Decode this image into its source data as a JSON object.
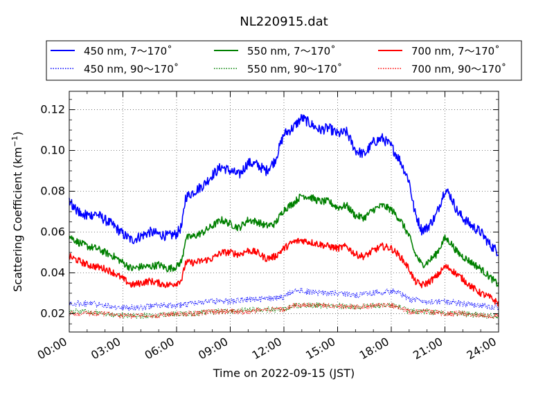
{
  "chart_data": {
    "type": "line",
    "title": "NL220915.dat",
    "xlabel": "Time on 2022-09-15 (JST)",
    "ylabel_main": "Scattering Coefficient (km",
    "ylabel_exp": "−1",
    "ylabel_close": ")",
    "x_ticks": [
      "00:00",
      "03:00",
      "06:00",
      "09:00",
      "12:00",
      "15:00",
      "18:00",
      "21:00",
      "24:00"
    ],
    "x_range_hours": [
      0,
      24
    ],
    "y_ticks": [
      "0.02",
      "0.04",
      "0.06",
      "0.08",
      "0.10",
      "0.12"
    ],
    "y_tick_values": [
      0.02,
      0.04,
      0.06,
      0.08,
      0.1,
      0.12
    ],
    "ylim": [
      0.011,
      0.129
    ],
    "grid": true,
    "legend_position": "top, above plot, 3 columns",
    "series": [
      {
        "name": "450 nm, 7～170˚",
        "color": "#0000ff",
        "style": "solid",
        "noise": 0.0025,
        "x": [
          0,
          0.5,
          1,
          1.5,
          2,
          2.5,
          3,
          3.5,
          4,
          4.5,
          5,
          5.5,
          6,
          6.3,
          6.5,
          7,
          7.5,
          8,
          8.5,
          9,
          9.5,
          10,
          10.5,
          11,
          11.5,
          12,
          12.5,
          13,
          13.5,
          14,
          14.5,
          15,
          15.5,
          16,
          16.5,
          17,
          17.5,
          18,
          18.5,
          19,
          19.3,
          19.7,
          20,
          20.5,
          21,
          21.3,
          21.7,
          22,
          22.5,
          23,
          23.5,
          24
        ],
        "y": [
          0.075,
          0.07,
          0.068,
          0.069,
          0.066,
          0.063,
          0.059,
          0.056,
          0.058,
          0.06,
          0.059,
          0.058,
          0.059,
          0.063,
          0.077,
          0.08,
          0.083,
          0.088,
          0.092,
          0.09,
          0.088,
          0.094,
          0.093,
          0.09,
          0.095,
          0.108,
          0.111,
          0.116,
          0.113,
          0.11,
          0.111,
          0.108,
          0.109,
          0.1,
          0.098,
          0.104,
          0.106,
          0.102,
          0.095,
          0.085,
          0.07,
          0.061,
          0.062,
          0.068,
          0.081,
          0.078,
          0.07,
          0.067,
          0.063,
          0.06,
          0.054,
          0.05
        ]
      },
      {
        "name": "550 nm, 7～170˚",
        "color": "#008000",
        "style": "solid",
        "noise": 0.0018,
        "x": [
          0,
          0.5,
          1,
          1.5,
          2,
          2.5,
          3,
          3.5,
          4,
          4.5,
          5,
          5.5,
          6,
          6.3,
          6.5,
          7,
          7.5,
          8,
          8.5,
          9,
          9.5,
          10,
          10.5,
          11,
          11.5,
          12,
          12.5,
          13,
          13.5,
          14,
          14.5,
          15,
          15.5,
          16,
          16.5,
          17,
          17.5,
          18,
          18.5,
          19,
          19.3,
          19.7,
          20,
          20.5,
          21,
          21.3,
          21.7,
          22,
          22.5,
          23,
          23.5,
          24
        ],
        "y": [
          0.058,
          0.055,
          0.053,
          0.052,
          0.05,
          0.048,
          0.045,
          0.042,
          0.043,
          0.043,
          0.044,
          0.042,
          0.043,
          0.046,
          0.057,
          0.058,
          0.06,
          0.063,
          0.066,
          0.064,
          0.062,
          0.066,
          0.065,
          0.063,
          0.064,
          0.071,
          0.074,
          0.078,
          0.077,
          0.075,
          0.075,
          0.072,
          0.073,
          0.068,
          0.067,
          0.071,
          0.073,
          0.071,
          0.066,
          0.058,
          0.05,
          0.044,
          0.045,
          0.049,
          0.057,
          0.055,
          0.05,
          0.048,
          0.045,
          0.042,
          0.038,
          0.034
        ]
      },
      {
        "name": "700 nm, 7～170˚",
        "color": "#ff0000",
        "style": "solid",
        "noise": 0.0017,
        "x": [
          0,
          0.5,
          1,
          1.5,
          2,
          2.5,
          3,
          3.5,
          4,
          4.5,
          5,
          5.5,
          6,
          6.3,
          6.5,
          7,
          7.5,
          8,
          8.5,
          9,
          9.5,
          10,
          10.5,
          11,
          11.5,
          12,
          12.5,
          13,
          13.5,
          14,
          14.5,
          15,
          15.5,
          16,
          16.5,
          17,
          17.5,
          18,
          18.5,
          19,
          19.3,
          19.7,
          20,
          20.5,
          21,
          21.3,
          21.7,
          22,
          22.5,
          23,
          23.5,
          24
        ],
        "y": [
          0.048,
          0.046,
          0.044,
          0.043,
          0.042,
          0.04,
          0.037,
          0.034,
          0.035,
          0.036,
          0.035,
          0.034,
          0.035,
          0.037,
          0.045,
          0.045,
          0.046,
          0.047,
          0.05,
          0.05,
          0.049,
          0.051,
          0.05,
          0.047,
          0.048,
          0.052,
          0.055,
          0.056,
          0.055,
          0.054,
          0.053,
          0.052,
          0.053,
          0.049,
          0.048,
          0.051,
          0.053,
          0.052,
          0.048,
          0.042,
          0.036,
          0.034,
          0.035,
          0.038,
          0.043,
          0.042,
          0.039,
          0.037,
          0.033,
          0.03,
          0.028,
          0.025
        ]
      },
      {
        "name": "450 nm, 90～170˚",
        "color": "#0000ff",
        "style": "dotted",
        "noise": 0.0015,
        "x": [
          0,
          1,
          2,
          3,
          4,
          5,
          6,
          7,
          8,
          9,
          10,
          11,
          12,
          12.5,
          13,
          14,
          15,
          16,
          17,
          18,
          18.5,
          19,
          20,
          21,
          22,
          23,
          24
        ],
        "y": [
          0.025,
          0.025,
          0.024,
          0.023,
          0.023,
          0.024,
          0.024,
          0.025,
          0.026,
          0.026,
          0.027,
          0.027,
          0.028,
          0.031,
          0.031,
          0.03,
          0.03,
          0.029,
          0.03,
          0.031,
          0.03,
          0.027,
          0.026,
          0.026,
          0.025,
          0.024,
          0.023
        ]
      },
      {
        "name": "550 nm, 90～170˚",
        "color": "#008000",
        "style": "dotted",
        "noise": 0.0014,
        "x": [
          0,
          1,
          2,
          3,
          4,
          5,
          6,
          7,
          8,
          9,
          10,
          11,
          12,
          12.5,
          13,
          14,
          15,
          16,
          17,
          18,
          18.5,
          19,
          20,
          21,
          22,
          23,
          24
        ],
        "y": [
          0.021,
          0.021,
          0.02,
          0.019,
          0.019,
          0.019,
          0.02,
          0.02,
          0.021,
          0.021,
          0.022,
          0.022,
          0.022,
          0.024,
          0.024,
          0.024,
          0.024,
          0.023,
          0.024,
          0.024,
          0.023,
          0.021,
          0.021,
          0.02,
          0.02,
          0.019,
          0.019
        ]
      },
      {
        "name": "700 nm, 90～170˚",
        "color": "#ff0000",
        "style": "dotted",
        "noise": 0.0013,
        "x": [
          0,
          1,
          2,
          3,
          4,
          5,
          6,
          7,
          8,
          9,
          10,
          11,
          12,
          12.5,
          13,
          14,
          15,
          16,
          17,
          18,
          18.5,
          19,
          20,
          21,
          22,
          23,
          24
        ],
        "y": [
          0.02,
          0.02,
          0.02,
          0.019,
          0.019,
          0.019,
          0.02,
          0.02,
          0.021,
          0.021,
          0.021,
          0.022,
          0.022,
          0.024,
          0.024,
          0.024,
          0.024,
          0.023,
          0.024,
          0.024,
          0.023,
          0.021,
          0.021,
          0.02,
          0.02,
          0.019,
          0.019
        ]
      }
    ]
  }
}
